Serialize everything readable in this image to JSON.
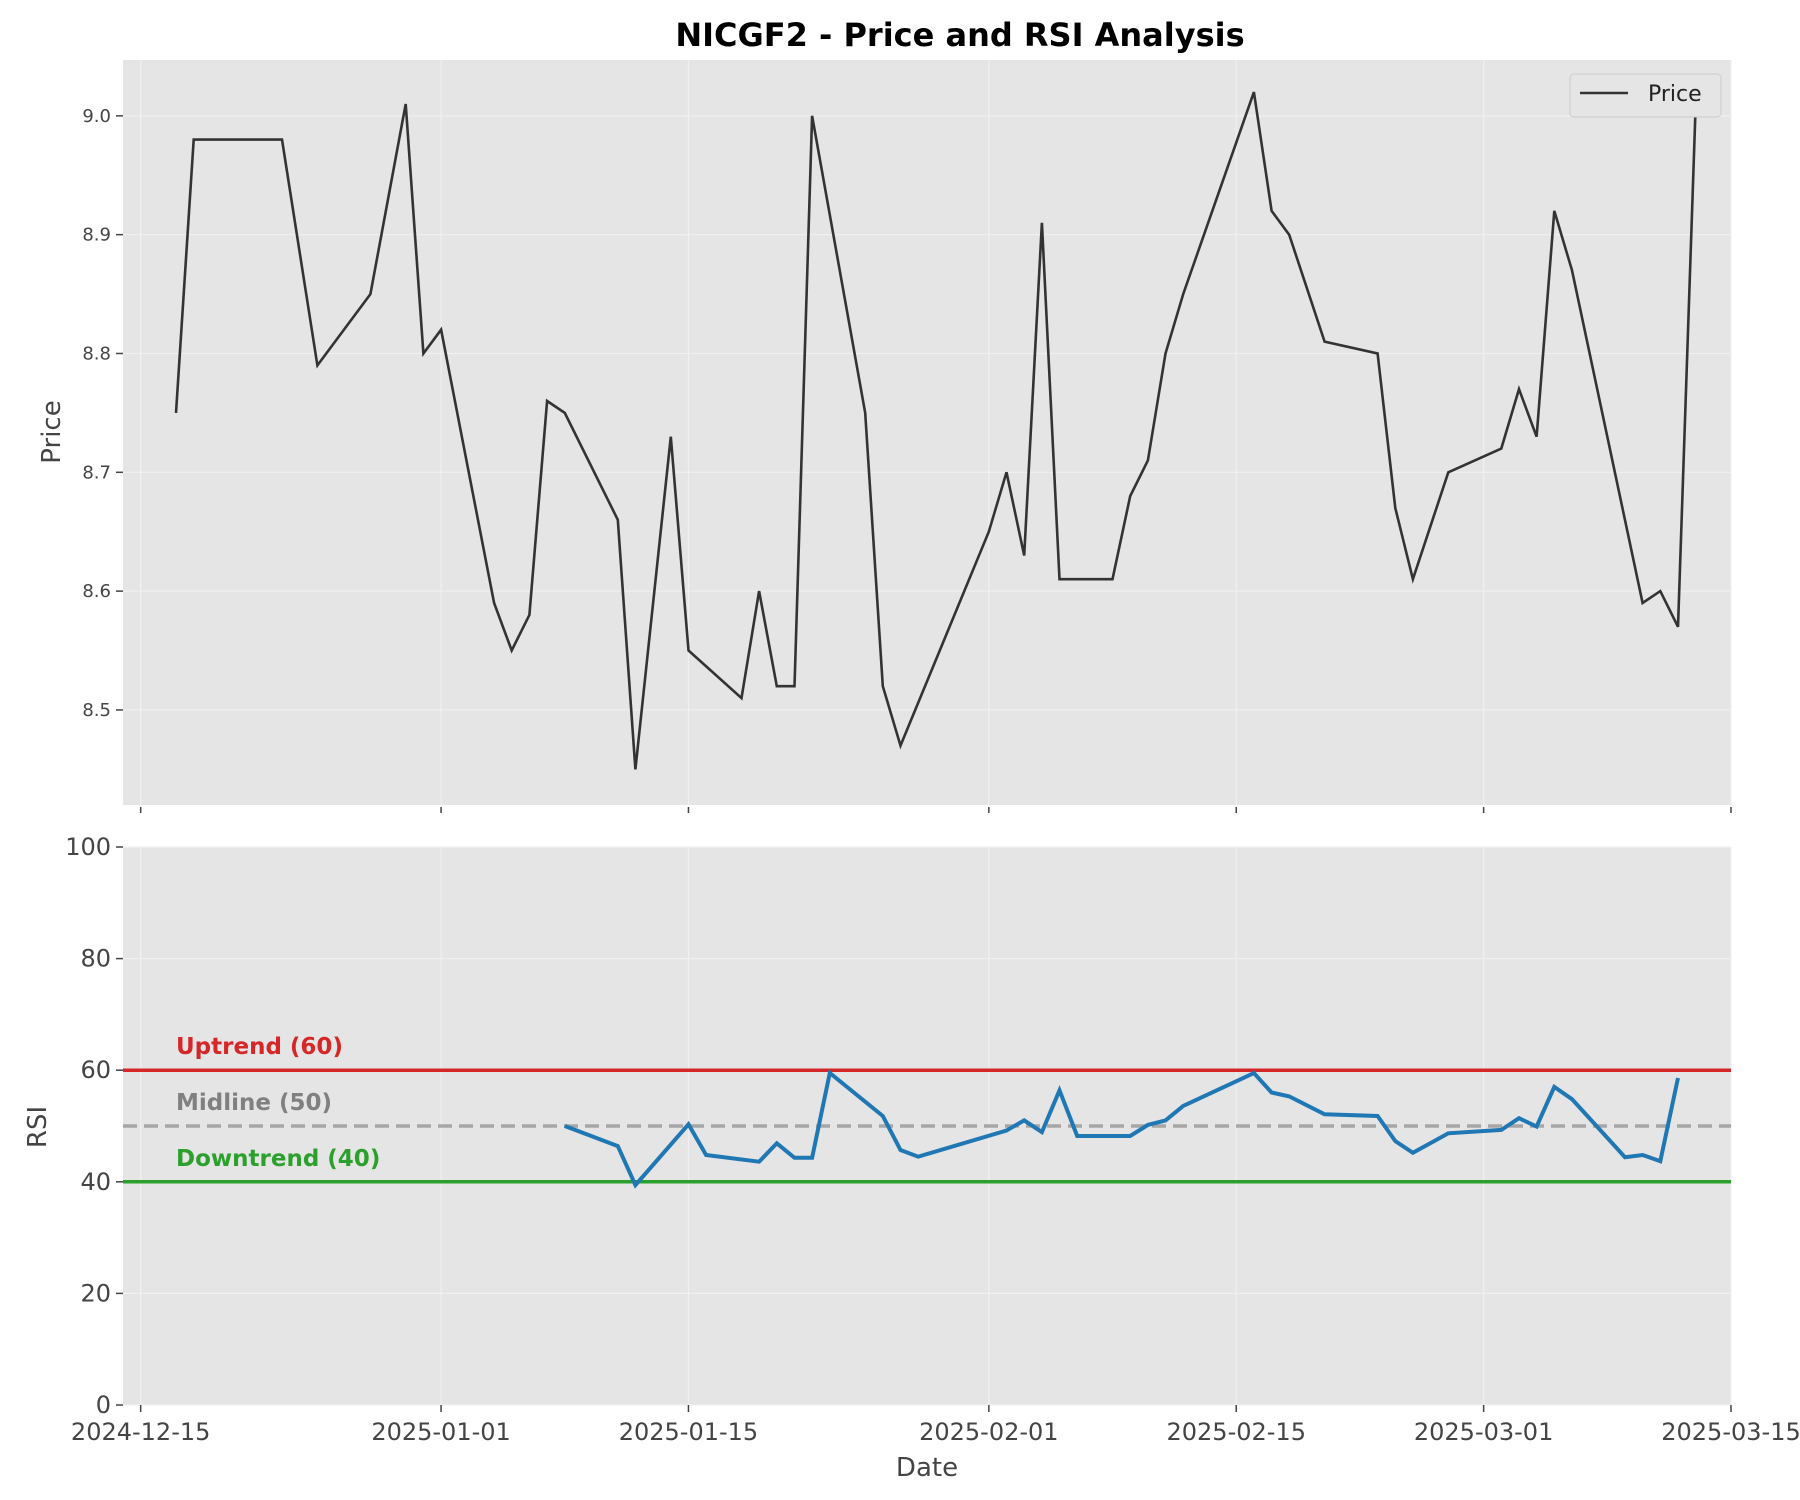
{
  "chart_data": {
    "type": "line",
    "title": "NICGF2 - Price and RSI Analysis",
    "xlabel": "Date",
    "colors": {
      "price": "#333333",
      "rsi": "#1f77b4",
      "uptrend": "#d62728",
      "midline": "#999999",
      "downtrend": "#2ca02c",
      "panel_bg": "#e5e5e5",
      "grid": "#f0f0f0"
    },
    "grid": true,
    "x_ticks": [
      "2024-12-15",
      "2025-01-01",
      "2025-01-15",
      "2025-02-01",
      "2025-02-15",
      "2025-03-01",
      "2025-03-15"
    ],
    "xlim": [
      "2024-12-14",
      "2025-03-15"
    ],
    "panels": [
      {
        "name": "price",
        "ylabel": "Price",
        "ylim": [
          8.42,
          9.047
        ],
        "y_ticks": [
          "8.5",
          "8.6",
          "8.7",
          "8.8",
          "8.9",
          "9.0"
        ],
        "legend": {
          "position": "top-right",
          "entries": [
            "Price"
          ]
        },
        "series": [
          {
            "name": "Price",
            "x": [
              "2024-12-17",
              "2024-12-18",
              "2024-12-23",
              "2024-12-25",
              "2024-12-28",
              "2024-12-30",
              "2024-12-31",
              "2025-01-01",
              "2025-01-04",
              "2025-01-05",
              "2025-01-06",
              "2025-01-07",
              "2025-01-08",
              "2025-01-11",
              "2025-01-12",
              "2025-01-14",
              "2025-01-15",
              "2025-01-18",
              "2025-01-19",
              "2025-01-20",
              "2025-01-21",
              "2025-01-22",
              "2025-01-25",
              "2025-01-26",
              "2025-01-27",
              "2025-02-01",
              "2025-02-02",
              "2025-02-03",
              "2025-02-04",
              "2025-02-05",
              "2025-02-08",
              "2025-02-09",
              "2025-02-10",
              "2025-02-11",
              "2025-02-12",
              "2025-02-16",
              "2025-02-17",
              "2025-02-18",
              "2025-02-20",
              "2025-02-23",
              "2025-02-24",
              "2025-02-25",
              "2025-02-27",
              "2025-03-02",
              "2025-03-03",
              "2025-03-04",
              "2025-03-05",
              "2025-03-06",
              "2025-03-10",
              "2025-03-11",
              "2025-03-12",
              "2025-03-13"
            ],
            "values": [
              8.75,
              8.98,
              8.98,
              8.79,
              8.85,
              9.01,
              8.8,
              8.82,
              8.59,
              8.55,
              8.58,
              8.76,
              8.75,
              8.66,
              8.45,
              8.73,
              8.55,
              8.51,
              8.6,
              8.52,
              8.52,
              9.0,
              8.75,
              8.52,
              8.47,
              8.65,
              8.7,
              8.63,
              8.91,
              8.61,
              8.61,
              8.68,
              8.71,
              8.8,
              8.85,
              9.02,
              8.92,
              8.9,
              8.81,
              8.8,
              8.67,
              8.61,
              8.7,
              8.72,
              8.77,
              8.73,
              8.92,
              8.87,
              8.59,
              8.6,
              8.57,
              9.01
            ]
          }
        ]
      },
      {
        "name": "rsi",
        "ylabel": "RSI",
        "ylim": [
          0,
          100
        ],
        "y_ticks": [
          "0",
          "20",
          "40",
          "60",
          "80",
          "100"
        ],
        "thresholds": [
          {
            "value": 60,
            "label": "Uptrend (60)",
            "style": "solid",
            "color": "#d62728",
            "label_color": "#d62728"
          },
          {
            "value": 50,
            "label": "Midline (50)",
            "style": "dashed",
            "color": "#a6a6a6",
            "label_color": "#808080"
          },
          {
            "value": 40,
            "label": "Downtrend (40)",
            "style": "solid",
            "color": "#2ca02c",
            "label_color": "#2ca02c"
          }
        ],
        "series": [
          {
            "name": "RSI",
            "x": [
              "2025-01-08",
              "2025-01-11",
              "2025-01-12",
              "2025-01-15",
              "2025-01-16",
              "2025-01-19",
              "2025-01-20",
              "2025-01-21",
              "2025-01-22",
              "2025-01-23",
              "2025-01-26",
              "2025-01-27",
              "2025-01-28",
              "2025-02-02",
              "2025-02-03",
              "2025-02-04",
              "2025-02-05",
              "2025-02-06",
              "2025-02-09",
              "2025-02-10",
              "2025-02-11",
              "2025-02-12",
              "2025-02-16",
              "2025-02-17",
              "2025-02-18",
              "2025-02-20",
              "2025-02-23",
              "2025-02-24",
              "2025-02-25",
              "2025-02-27",
              "2025-03-02",
              "2025-03-03",
              "2025-03-04",
              "2025-03-05",
              "2025-03-06",
              "2025-03-09",
              "2025-03-10",
              "2025-03-11",
              "2025-03-12"
            ],
            "values": [
              50.0,
              46.4,
              39.4,
              50.3,
              44.8,
              43.6,
              46.9,
              44.3,
              44.3,
              59.5,
              51.8,
              45.7,
              44.5,
              49.2,
              51.0,
              48.9,
              56.4,
              48.2,
              48.2,
              50.2,
              51.0,
              53.6,
              59.5,
              56.0,
              55.3,
              52.1,
              51.8,
              47.3,
              45.2,
              48.7,
              49.3,
              51.4,
              49.9,
              57.0,
              54.8,
              44.4,
              44.8,
              43.7,
              58.6
            ]
          }
        ]
      }
    ]
  }
}
